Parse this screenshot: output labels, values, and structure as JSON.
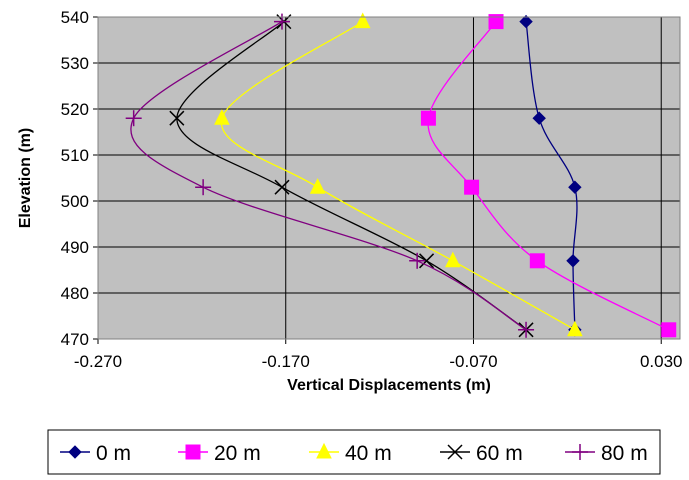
{
  "chart_data": {
    "type": "line",
    "title": "",
    "xlabel": "Vertical Displacements (m)",
    "ylabel": "Elevation (m)",
    "xlim": [
      -0.27,
      0.04
    ],
    "ylim": [
      470,
      540
    ],
    "xticks": [
      "-0.270",
      "-0.170",
      "-0.070",
      "0.030"
    ],
    "yticks": [
      "470",
      "480",
      "490",
      "500",
      "510",
      "520",
      "530",
      "540"
    ],
    "grid": true,
    "background": "#c0c0c0",
    "legend_position": "bottom",
    "y": [
      539,
      518,
      503,
      487,
      472
    ],
    "series": [
      {
        "name": "0 m",
        "color": "#000080",
        "marker": "diamond",
        "x": [
          -0.042,
          -0.035,
          -0.016,
          -0.017,
          -0.016
        ]
      },
      {
        "name": "20 m",
        "color": "#ff00ff",
        "marker": "square",
        "x": [
          -0.058,
          -0.094,
          -0.071,
          -0.036,
          0.034
        ]
      },
      {
        "name": "40 m",
        "color": "#ffff00",
        "marker": "triangle",
        "x": [
          -0.129,
          -0.204,
          -0.153,
          -0.081,
          -0.016
        ]
      },
      {
        "name": "60 m",
        "color": "#000000",
        "marker": "x",
        "x": [
          -0.171,
          -0.228,
          -0.172,
          -0.095,
          -0.042
        ]
      },
      {
        "name": "80 m",
        "color": "#800080",
        "marker": "plus",
        "x": [
          -0.172,
          -0.251,
          -0.214,
          -0.1,
          -0.042
        ]
      }
    ]
  }
}
